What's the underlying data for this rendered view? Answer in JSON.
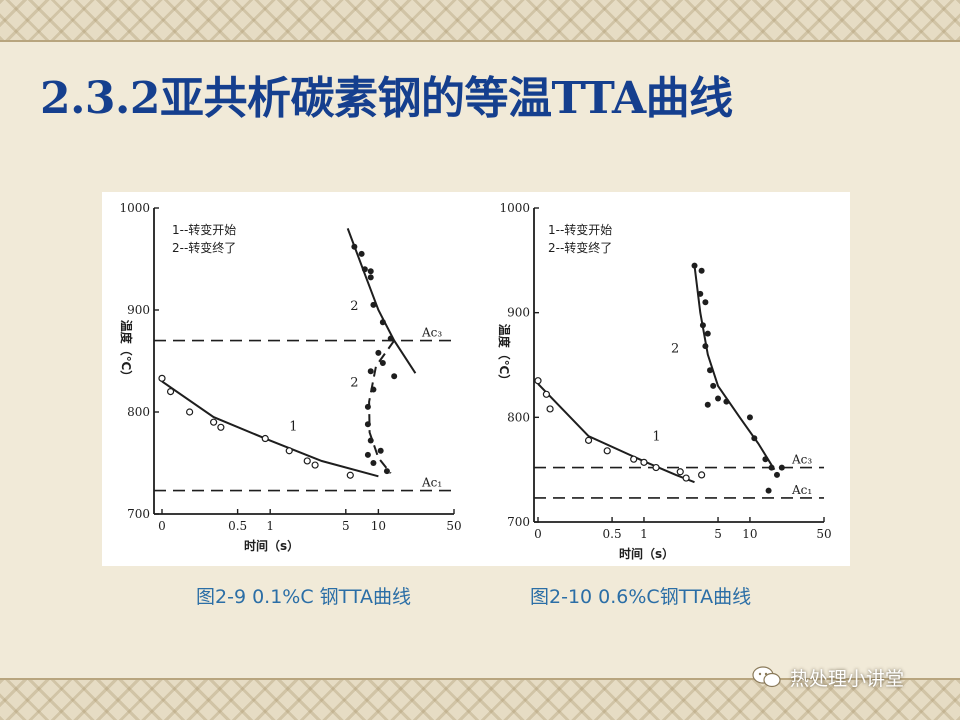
{
  "slide": {
    "title": "2.3.2亚共析碳素钢的等温TTA曲线",
    "captions": [
      "图2-9 0.1%C 钢TTA曲线",
      "图2-10  0.6%C钢TTA曲线"
    ],
    "watermark": "热处理小讲堂"
  },
  "colors": {
    "title": "#153f8e",
    "caption": "#2b6ea6"
  },
  "chart_data": [
    {
      "type": "scatter",
      "xscale": "log",
      "xlabel": "时间（s）",
      "ylabel": "温度（℃）",
      "ylim": [
        700,
        1000
      ],
      "xlim": [
        0.1,
        50
      ],
      "x_ticks": [
        {
          "value": 0.1,
          "label": "0"
        },
        {
          "value": 0.5,
          "label": "0.5"
        },
        {
          "value": 1,
          "label": "1"
        },
        {
          "value": 5,
          "label": "5"
        },
        {
          "value": 10,
          "label": "10"
        },
        {
          "value": 50,
          "label": "50"
        }
      ],
      "y_ticks": [
        700,
        800,
        900,
        1000
      ],
      "y_tick_labels": [
        "700",
        "800",
        "900",
        "1000"
      ],
      "legend": [
        "1--转变开始",
        "2--转变终了"
      ],
      "reference_lines": [
        {
          "name": "Ac3",
          "label": "Ac₃",
          "y": 870
        },
        {
          "name": "Ac1",
          "label": "Ac₁",
          "y": 723
        }
      ],
      "series": [
        {
          "name": "1",
          "marker": "open",
          "line": "solid",
          "points": [
            [
              0.1,
              833
            ],
            [
              0.12,
              820
            ],
            [
              0.18,
              800
            ],
            [
              0.3,
              790
            ],
            [
              0.35,
              785
            ],
            [
              0.9,
              774
            ],
            [
              1.5,
              762
            ],
            [
              2.2,
              752
            ],
            [
              2.6,
              748
            ],
            [
              5.5,
              738
            ]
          ],
          "curve": [
            [
              0.1,
              830
            ],
            [
              0.3,
              795
            ],
            [
              1,
              772
            ],
            [
              3,
              752
            ],
            [
              10,
              737
            ]
          ]
        },
        {
          "name": "2",
          "marker": "filled",
          "line": "solid",
          "points": [
            [
              6,
              962
            ],
            [
              7,
              955
            ],
            [
              7.5,
              940
            ],
            [
              8.5,
              932
            ],
            [
              8.5,
              938
            ],
            [
              9,
              905
            ],
            [
              11,
              888
            ],
            [
              13,
              872
            ]
          ],
          "curve": [
            [
              5.2,
              980
            ],
            [
              7.5,
              935
            ],
            [
              10,
              900
            ],
            [
              14,
              870
            ],
            [
              22,
              838
            ]
          ]
        },
        {
          "name": "2",
          "marker": "filled",
          "line": "dashed",
          "points": [
            [
              10,
              858
            ],
            [
              11,
              848
            ],
            [
              8.5,
              840
            ],
            [
              14,
              835
            ],
            [
              9,
              822
            ],
            [
              8,
              805
            ],
            [
              8,
              788
            ],
            [
              8.5,
              772
            ],
            [
              10.5,
              762
            ],
            [
              8,
              758
            ],
            [
              9,
              750
            ],
            [
              12,
              742
            ]
          ],
          "curve": [
            [
              14,
              870
            ],
            [
              9.5,
              845
            ],
            [
              8.2,
              810
            ],
            [
              8.3,
              780
            ],
            [
              10,
              755
            ],
            [
              13,
              740
            ]
          ]
        }
      ],
      "annotations": [
        {
          "text": "1",
          "x": 1.5,
          "y": 782
        },
        {
          "text": "2",
          "x": 5.5,
          "y": 900
        },
        {
          "text": "2",
          "x": 5.5,
          "y": 825
        }
      ]
    },
    {
      "type": "scatter",
      "xscale": "log",
      "xlabel": "时间（s）",
      "ylabel": "温度（℃）",
      "ylim": [
        700,
        1000
      ],
      "xlim": [
        0.1,
        50
      ],
      "x_ticks": [
        {
          "value": 0.1,
          "label": "0"
        },
        {
          "value": 0.5,
          "label": "0.5"
        },
        {
          "value": 1,
          "label": "1"
        },
        {
          "value": 5,
          "label": "5"
        },
        {
          "value": 10,
          "label": "10"
        },
        {
          "value": 50,
          "label": "50"
        }
      ],
      "y_ticks": [
        700,
        800,
        900,
        1000
      ],
      "y_tick_labels": [
        "700",
        "800",
        "900",
        "1000"
      ],
      "legend": [
        "1--转变开始",
        "2--转变终了"
      ],
      "reference_lines": [
        {
          "name": "Ac3",
          "label": "Ac₃",
          "y": 752
        },
        {
          "name": "Ac1",
          "label": "Ac₁",
          "y": 723
        }
      ],
      "series": [
        {
          "name": "1",
          "marker": "open",
          "line": "solid",
          "points": [
            [
              0.1,
              835
            ],
            [
              0.12,
              822
            ],
            [
              0.13,
              808
            ],
            [
              0.3,
              778
            ],
            [
              0.45,
              768
            ],
            [
              0.8,
              760
            ],
            [
              1,
              757
            ],
            [
              1.3,
              752
            ],
            [
              2.2,
              748
            ],
            [
              2.5,
              742
            ],
            [
              3.5,
              745
            ]
          ],
          "curve": [
            [
              0.1,
              832
            ],
            [
              0.3,
              782
            ],
            [
              1,
              758
            ],
            [
              2,
              745
            ],
            [
              3,
              738
            ]
          ]
        },
        {
          "name": "2",
          "marker": "filled",
          "line": "solid",
          "points": [
            [
              3,
              945
            ],
            [
              3.5,
              940
            ],
            [
              3.4,
              918
            ],
            [
              3.8,
              910
            ],
            [
              3.6,
              888
            ],
            [
              4,
              880
            ],
            [
              3.8,
              868
            ],
            [
              4.2,
              845
            ],
            [
              4.5,
              830
            ],
            [
              5,
              818
            ],
            [
              6,
              815
            ],
            [
              4,
              812
            ],
            [
              10,
              800
            ],
            [
              11,
              780
            ],
            [
              14,
              760
            ],
            [
              16,
              752
            ],
            [
              18,
              745
            ],
            [
              15,
              730
            ],
            [
              20,
              752
            ]
          ],
          "curve": [
            [
              3,
              945
            ],
            [
              3.4,
              900
            ],
            [
              4,
              860
            ],
            [
              5,
              830
            ],
            [
              8,
              800
            ],
            [
              12,
              775
            ],
            [
              17,
              750
            ]
          ]
        }
      ],
      "annotations": [
        {
          "text": "1",
          "x": 1.2,
          "y": 778
        },
        {
          "text": "2",
          "x": 1.8,
          "y": 862
        }
      ]
    }
  ]
}
